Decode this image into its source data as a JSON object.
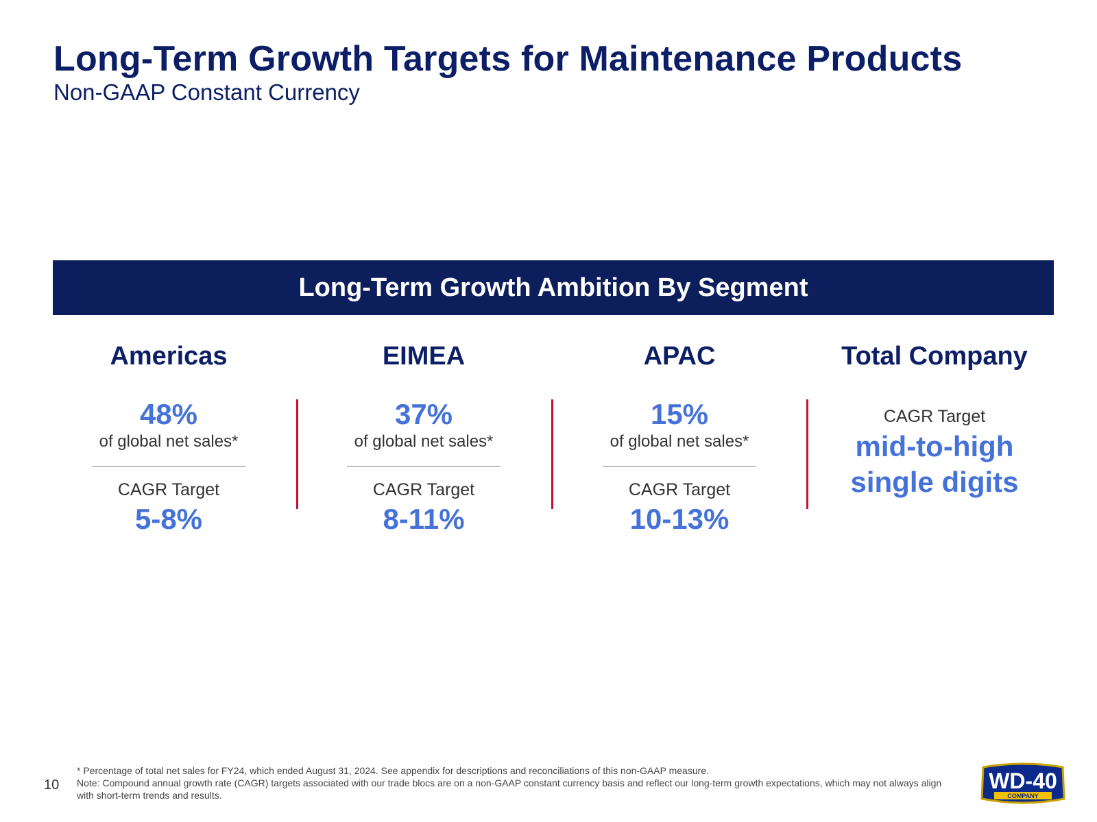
{
  "header": {
    "title": "Long-Term Growth Targets for Maintenance Products",
    "subtitle": "Non-GAAP Constant Currency"
  },
  "banner": {
    "title": "Long-Term Growth Ambition By Segment"
  },
  "segments": [
    {
      "name": "Americas",
      "share": "48%",
      "share_label": "of global net sales*",
      "cagr_label": "CAGR Target",
      "cagr_value": "5-8%"
    },
    {
      "name": "EIMEA",
      "share": "37%",
      "share_label": "of global net sales*",
      "cagr_label": "CAGR Target",
      "cagr_value": "8-11%"
    },
    {
      "name": "APAC",
      "share": "15%",
      "share_label": "of global net sales*",
      "cagr_label": "CAGR Target",
      "cagr_value": "10-13%"
    }
  ],
  "total": {
    "name": "Total Company",
    "cagr_label": "CAGR Target",
    "cagr_value_line1": "mid-to-high",
    "cagr_value_line2": "single digits"
  },
  "footer": {
    "page_number": "10",
    "footnote1": "* Percentage of total net sales for FY24, which ended August 31, 2024. See appendix for descriptions and reconciliations of this non-GAAP measure.",
    "footnote2": "Note: Compound annual growth rate (CAGR) targets associated with our trade blocs are on a non-GAAP constant currency basis and reflect our long-term growth expectations, which may not always align with short-term trends and results."
  },
  "logo": {
    "main_text": "WD-40",
    "sub_text": "COMPANY"
  },
  "colors": {
    "navy": "#0c1f66",
    "banner": "#0c1f5c",
    "accent_blue": "#4472d8",
    "divider_red": "#c8102e"
  }
}
